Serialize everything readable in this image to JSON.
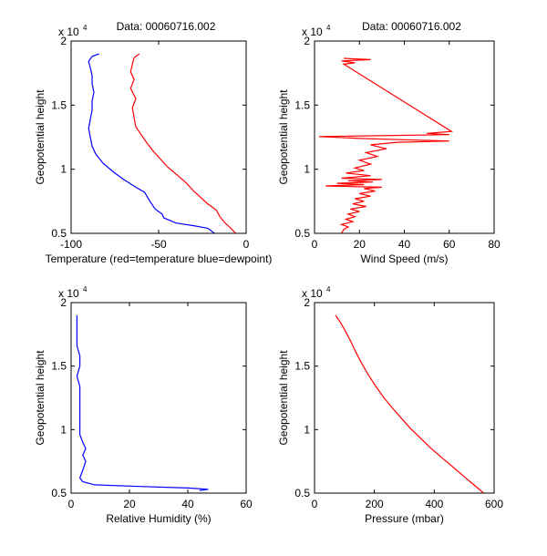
{
  "chart_data": [
    {
      "type": "line",
      "title": "Data: 00060716.002",
      "xlabel": "Temperature (red=temperature blue=dewpoint)",
      "ylabel": "Geopotential height",
      "xlim": [
        -100,
        0
      ],
      "ylim": [
        5000,
        20000
      ],
      "xticks": [
        "-100",
        "-50",
        "0"
      ],
      "yticks": [
        "0.5",
        "1",
        "1.5",
        "2"
      ],
      "y_multiplier": "x 10",
      "y_exponent": "4",
      "series": [
        {
          "color": "#ff0000",
          "points": [
            [
              -6,
              5000
            ],
            [
              -8,
              5300
            ],
            [
              -12,
              5800
            ],
            [
              -15,
              6300
            ],
            [
              -17,
              6800
            ],
            [
              -22,
              7300
            ],
            [
              -26,
              7800
            ],
            [
              -30,
              8300
            ],
            [
              -34,
              8900
            ],
            [
              -39,
              9500
            ],
            [
              -45,
              10200
            ],
            [
              -49,
              10800
            ],
            [
              -53,
              11400
            ],
            [
              -57,
              12100
            ],
            [
              -60,
              12700
            ],
            [
              -63,
              13300
            ],
            [
              -64,
              14000
            ],
            [
              -65,
              14800
            ],
            [
              -63,
              15500
            ],
            [
              -66,
              16300
            ],
            [
              -64,
              17000
            ],
            [
              -66,
              17600
            ],
            [
              -65,
              18200
            ],
            [
              -64,
              18700
            ],
            [
              -61,
              19000
            ]
          ]
        },
        {
          "color": "#0000ff",
          "points": [
            [
              -18,
              5000
            ],
            [
              -22,
              5400
            ],
            [
              -30,
              5600
            ],
            [
              -40,
              5800
            ],
            [
              -47,
              6200
            ],
            [
              -48,
              6500
            ],
            [
              -52,
              6900
            ],
            [
              -55,
              7500
            ],
            [
              -58,
              8200
            ],
            [
              -63,
              8600
            ],
            [
              -70,
              9200
            ],
            [
              -76,
              9800
            ],
            [
              -82,
              10500
            ],
            [
              -86,
              11200
            ],
            [
              -88,
              11800
            ],
            [
              -89,
              12500
            ],
            [
              -90,
              13200
            ],
            [
              -89,
              13900
            ],
            [
              -88,
              14600
            ],
            [
              -88,
              15300
            ],
            [
              -87,
              16000
            ],
            [
              -88,
              16700
            ],
            [
              -88,
              17300
            ],
            [
              -89,
              17900
            ],
            [
              -90,
              18400
            ],
            [
              -88,
              18800
            ],
            [
              -84,
              19000
            ]
          ]
        }
      ]
    },
    {
      "type": "line",
      "title": "Data: 00060716.002",
      "xlabel": "Wind Speed (m/s)",
      "ylabel": "Geopotential height",
      "xlim": [
        0,
        80
      ],
      "ylim": [
        5000,
        20000
      ],
      "xticks": [
        "0",
        "20",
        "40",
        "60",
        "80"
      ],
      "yticks": [
        "0.5",
        "1",
        "1.5",
        "2"
      ],
      "y_multiplier": "x 10",
      "y_exponent": "4",
      "series": [
        {
          "color": "#ff0000",
          "points": [
            [
              12,
              5000
            ],
            [
              13,
              5300
            ],
            [
              15,
              5500
            ],
            [
              12,
              5700
            ],
            [
              17,
              5900
            ],
            [
              14,
              6100
            ],
            [
              18,
              6300
            ],
            [
              15,
              6500
            ],
            [
              20,
              6700
            ],
            [
              16,
              6900
            ],
            [
              23,
              7100
            ],
            [
              17,
              7300
            ],
            [
              22,
              7500
            ],
            [
              18,
              7700
            ],
            [
              25,
              7900
            ],
            [
              20,
              8100
            ],
            [
              27,
              8300
            ],
            [
              22,
              8500
            ],
            [
              30,
              8600
            ],
            [
              5,
              8700
            ],
            [
              22,
              8800
            ],
            [
              10,
              8900
            ],
            [
              26,
              9000
            ],
            [
              15,
              9100
            ],
            [
              30,
              9200
            ],
            [
              12,
              9300
            ],
            [
              25,
              9500
            ],
            [
              14,
              9700
            ],
            [
              22,
              9900
            ],
            [
              18,
              10100
            ],
            [
              25,
              10400
            ],
            [
              20,
              10700
            ],
            [
              28,
              11000
            ],
            [
              23,
              11300
            ],
            [
              32,
              11600
            ],
            [
              25,
              11900
            ],
            [
              37,
              12100
            ],
            [
              60,
              12200
            ],
            [
              40,
              12300
            ],
            [
              20,
              12400
            ],
            [
              2,
              12550
            ],
            [
              60,
              12700
            ],
            [
              50,
              12800
            ],
            [
              61,
              12950
            ],
            [
              13,
              18200
            ],
            [
              18,
              18300
            ],
            [
              12,
              18450
            ],
            [
              25,
              18550
            ],
            [
              13,
              18650
            ]
          ]
        }
      ]
    },
    {
      "type": "line",
      "xlabel": "Relative Humidity (%)",
      "ylabel": "Geopotential height",
      "xlim": [
        0,
        60
      ],
      "ylim": [
        5000,
        20000
      ],
      "xticks": [
        "0",
        "20",
        "40",
        "60"
      ],
      "yticks": [
        "0.5",
        "1",
        "1.5",
        "2"
      ],
      "y_multiplier": "x 10",
      "y_exponent": "4",
      "series": [
        {
          "color": "#0000ff",
          "points": [
            [
              44,
              5200
            ],
            [
              47,
              5300
            ],
            [
              40,
              5400
            ],
            [
              20,
              5550
            ],
            [
              8,
              5650
            ],
            [
              4,
              5900
            ],
            [
              3,
              6200
            ],
            [
              4,
              6800
            ],
            [
              5,
              7500
            ],
            [
              4,
              8000
            ],
            [
              5,
              8500
            ],
            [
              4,
              9000
            ],
            [
              3,
              9600
            ],
            [
              3,
              10300
            ],
            [
              3,
              11000
            ],
            [
              3,
              11800
            ],
            [
              3,
              12600
            ],
            [
              3,
              13400
            ],
            [
              2,
              14200
            ],
            [
              3,
              15000
            ],
            [
              3,
              15800
            ],
            [
              2,
              16600
            ],
            [
              2,
              17400
            ],
            [
              2,
              18200
            ],
            [
              2,
              19000
            ]
          ]
        }
      ]
    },
    {
      "type": "line",
      "xlabel": "Pressure (mbar)",
      "ylabel": "Geopotential height",
      "xlim": [
        0,
        600
      ],
      "ylim": [
        5000,
        20000
      ],
      "xticks": [
        "0",
        "200",
        "400",
        "600"
      ],
      "yticks": [
        "0.5",
        "1",
        "1.5",
        "2"
      ],
      "y_multiplier": "x 10",
      "y_exponent": "4",
      "series": [
        {
          "color": "#ff0000",
          "points": [
            [
              565,
              5000
            ],
            [
              540,
              5500
            ],
            [
              505,
              6200
            ],
            [
              470,
              6900
            ],
            [
              430,
              7700
            ],
            [
              390,
              8500
            ],
            [
              355,
              9300
            ],
            [
              320,
              10100
            ],
            [
              290,
              10900
            ],
            [
              260,
              11700
            ],
            [
              232,
              12500
            ],
            [
              205,
              13400
            ],
            [
              180,
              14300
            ],
            [
              158,
              15200
            ],
            [
              138,
              16100
            ],
            [
              120,
              17000
            ],
            [
              102,
              17800
            ],
            [
              85,
              18500
            ],
            [
              70,
              19000
            ]
          ]
        }
      ]
    }
  ]
}
